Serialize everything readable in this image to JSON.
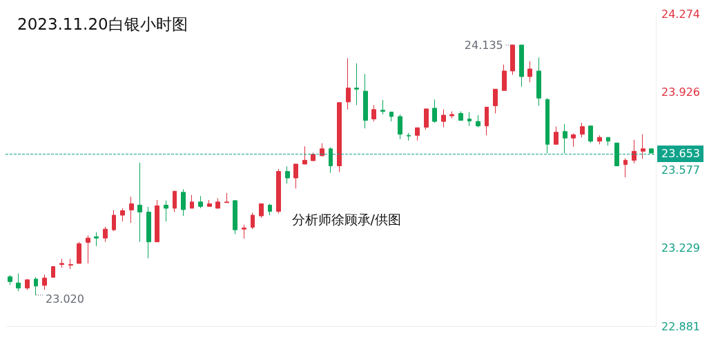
{
  "chart_data": {
    "type": "candlestick",
    "title": "2023.11.20白银小时图",
    "annotations": [
      "24.135",
      "23.020",
      "分析师徐顾承/供图"
    ],
    "categories": [
      null,
      null,
      null,
      null,
      null,
      null,
      null,
      null,
      null,
      null,
      null,
      null,
      null,
      null,
      null,
      null,
      null,
      null,
      null,
      null,
      null,
      null,
      null,
      null,
      null,
      null,
      null,
      null,
      null,
      null,
      null,
      null,
      null,
      null,
      null,
      null,
      null,
      null,
      null,
      null,
      null,
      null,
      null,
      null,
      null,
      null,
      null,
      null,
      null,
      null,
      null,
      null,
      null,
      null,
      null,
      null,
      null,
      null,
      null,
      null,
      null,
      null,
      null,
      null,
      null,
      null,
      null,
      null,
      null,
      null,
      null,
      null,
      null,
      null,
      null
    ],
    "ohlc": [
      [
        23.102,
        23.108,
        23.065,
        23.08
      ],
      [
        23.074,
        23.116,
        23.037,
        23.051
      ],
      [
        23.051,
        23.091,
        23.043,
        23.088
      ],
      [
        23.091,
        23.099,
        23.02,
        23.06
      ],
      [
        23.063,
        23.111,
        23.043,
        23.096
      ],
      [
        23.099,
        23.147,
        23.099,
        23.147
      ],
      [
        23.156,
        23.181,
        23.142,
        23.161
      ],
      [
        23.153,
        23.181,
        23.136,
        23.156
      ],
      [
        23.161,
        23.257,
        23.161,
        23.249
      ],
      [
        23.255,
        23.286,
        23.161,
        23.274
      ],
      [
        23.28,
        23.3,
        23.238,
        23.274
      ],
      [
        23.274,
        23.325,
        23.257,
        23.314
      ],
      [
        23.311,
        23.399,
        23.305,
        23.376
      ],
      [
        23.376,
        23.407,
        23.348,
        23.396
      ],
      [
        23.399,
        23.458,
        23.342,
        23.427
      ],
      [
        23.421,
        23.61,
        23.257,
        23.39
      ],
      [
        23.39,
        23.413,
        23.184,
        23.257
      ],
      [
        23.257,
        23.444,
        23.257,
        23.418
      ],
      [
        23.421,
        23.441,
        23.348,
        23.407
      ],
      [
        23.407,
        23.483,
        23.39,
        23.483
      ],
      [
        23.478,
        23.492,
        23.373,
        23.401
      ],
      [
        23.407,
        23.466,
        23.407,
        23.435
      ],
      [
        23.435,
        23.461,
        23.407,
        23.415
      ],
      [
        23.415,
        23.444,
        23.415,
        23.427
      ],
      [
        23.407,
        23.452,
        23.407,
        23.435
      ],
      [
        23.432,
        23.475,
        23.432,
        23.435
      ],
      [
        23.441,
        23.444,
        23.291,
        23.311
      ],
      [
        23.314,
        23.334,
        23.272,
        23.319
      ],
      [
        23.322,
        23.387,
        23.314,
        23.376
      ],
      [
        23.373,
        23.427,
        23.365,
        23.427
      ],
      [
        23.421,
        23.427,
        23.376,
        23.393
      ],
      [
        23.393,
        23.582,
        23.384,
        23.571
      ],
      [
        23.571,
        23.593,
        23.517,
        23.542
      ],
      [
        23.542,
        23.604,
        23.495,
        23.604
      ],
      [
        23.604,
        23.683,
        23.602,
        23.621
      ],
      [
        23.619,
        23.655,
        23.619,
        23.647
      ],
      [
        23.641,
        23.697,
        23.638,
        23.672
      ],
      [
        23.672,
        23.678,
        23.565,
        23.596
      ],
      [
        23.596,
        23.878,
        23.568,
        23.878
      ],
      [
        23.881,
        24.076,
        23.847,
        23.943
      ],
      [
        23.943,
        24.053,
        23.867,
        23.938
      ],
      [
        23.929,
        24.005,
        23.763,
        23.799
      ],
      [
        23.805,
        23.867,
        23.794,
        23.847
      ],
      [
        23.844,
        23.89,
        23.825,
        23.839
      ],
      [
        23.836,
        23.836,
        23.794,
        23.816
      ],
      [
        23.816,
        23.825,
        23.715,
        23.737
      ],
      [
        23.732,
        23.743,
        23.709,
        23.729
      ],
      [
        23.732,
        23.766,
        23.709,
        23.766
      ],
      [
        23.768,
        23.85,
        23.757,
        23.85
      ],
      [
        23.853,
        23.892,
        23.788,
        23.794
      ],
      [
        23.794,
        23.847,
        23.768,
        23.822
      ],
      [
        23.819,
        23.839,
        23.808,
        23.825
      ],
      [
        23.83,
        23.839,
        23.799,
        23.799
      ],
      [
        23.805,
        23.836,
        23.774,
        23.796
      ],
      [
        23.794,
        23.822,
        23.768,
        23.774
      ],
      [
        23.774,
        23.858,
        23.732,
        23.858
      ],
      [
        23.864,
        23.938,
        23.83,
        23.938
      ],
      [
        23.932,
        24.048,
        23.932,
        24.019
      ],
      [
        24.019,
        24.135,
        24.002,
        24.135
      ],
      [
        24.135,
        24.135,
        23.949,
        23.994
      ],
      [
        23.994,
        24.062,
        23.969,
        24.028
      ],
      [
        24.019,
        24.079,
        23.864,
        23.898
      ],
      [
        23.892,
        23.898,
        23.652,
        23.692
      ],
      [
        23.692,
        23.771,
        23.692,
        23.746
      ],
      [
        23.749,
        23.782,
        23.652,
        23.72
      ],
      [
        23.72,
        23.74,
        23.681,
        23.735
      ],
      [
        23.737,
        23.788,
        23.723,
        23.771
      ],
      [
        23.774,
        23.774,
        23.698,
        23.706
      ],
      [
        23.706,
        23.732,
        23.692,
        23.723
      ],
      [
        23.723,
        23.723,
        23.686,
        23.706
      ],
      [
        23.698,
        23.698,
        23.596,
        23.596
      ],
      [
        23.602,
        23.63,
        23.545,
        23.621
      ],
      [
        23.621,
        23.712,
        23.607,
        23.661
      ],
      [
        23.661,
        23.737,
        23.627,
        23.672
      ],
      [
        23.672,
        23.672,
        23.653,
        23.653
      ]
    ],
    "colors": [
      "#08a759",
      "#08a759",
      "#e0313f",
      "#08a759",
      "#e0313f",
      "#e0313f",
      "#e0313f",
      "#e0313f",
      "#e0313f",
      "#e0313f",
      "#08a759",
      "#e0313f",
      "#e0313f",
      "#e0313f",
      "#e0313f",
      "#08a759",
      "#08a759",
      "#e0313f",
      "#08a759",
      "#e0313f",
      "#08a759",
      "#e0313f",
      "#08a759",
      "#e0313f",
      "#e0313f",
      "#e0313f",
      "#08a759",
      "#e0313f",
      "#e0313f",
      "#e0313f",
      "#08a759",
      "#e0313f",
      "#08a759",
      "#e0313f",
      "#e0313f",
      "#e0313f",
      "#e0313f",
      "#08a759",
      "#e0313f",
      "#e0313f",
      "#08a759",
      "#08a759",
      "#e0313f",
      "#08a759",
      "#08a759",
      "#08a759",
      "#08a759",
      "#e0313f",
      "#e0313f",
      "#08a759",
      "#e0313f",
      "#e0313f",
      "#08a759",
      "#08a759",
      "#08a759",
      "#e0313f",
      "#e0313f",
      "#e0313f",
      "#e0313f",
      "#08a759",
      "#e0313f",
      "#08a759",
      "#08a759",
      "#e0313f",
      "#08a759",
      "#e0313f",
      "#e0313f",
      "#08a759",
      "#e0313f",
      "#08a759",
      "#08a759",
      "#e0313f",
      "#e0313f",
      "#e0313f",
      "#08a759"
    ],
    "ylim": [
      22.881,
      24.274
    ],
    "yticks": [
      22.881,
      23.229,
      23.577,
      23.926,
      24.274
    ],
    "ref_lines": [
      {
        "axis": "y",
        "value": 23.653,
        "label": "23.653",
        "color": "#10a38a",
        "line_style": "dashed"
      }
    ],
    "tick_labels": "y",
    "grid": false
  }
}
